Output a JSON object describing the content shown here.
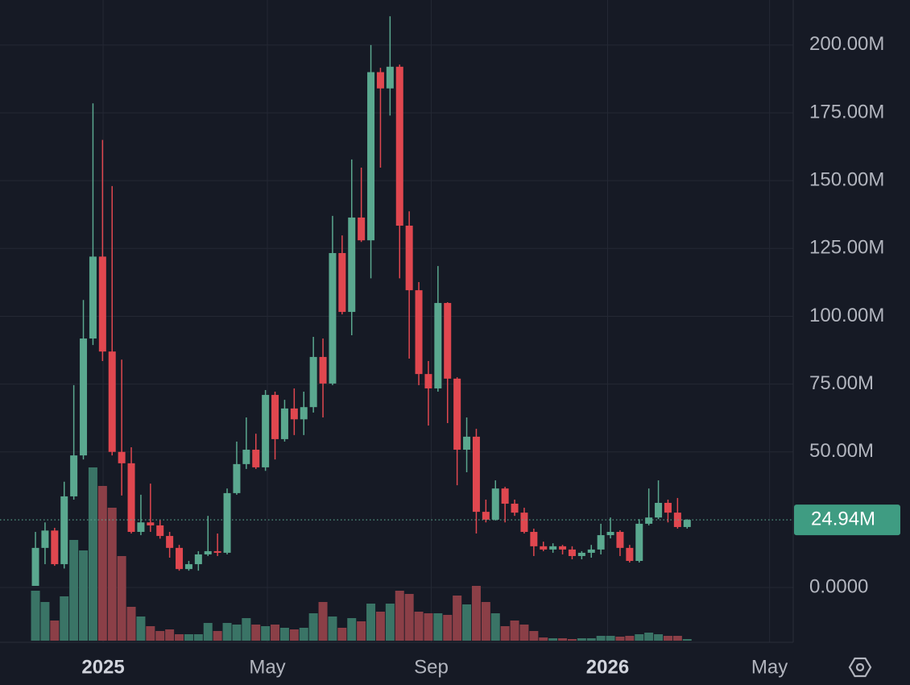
{
  "chart_data": {
    "type": "candlestick",
    "open": [
      0.6,
      14.6,
      21,
      8.6,
      33.6,
      48.7,
      91.8,
      122,
      87,
      50,
      45.8,
      20.5,
      24,
      22.9,
      19,
      14.6,
      6.8,
      8.6,
      12.2,
      13.4,
      12.8,
      34.8,
      45.5,
      50.8,
      44.3,
      71,
      54.7,
      66,
      62,
      66.5,
      85,
      75.2,
      123.3,
      101.6,
      136.4,
      128,
      190,
      184,
      192,
      133.4,
      109.6,
      78.7,
      73.4,
      104.9,
      77,
      50.8,
      55.6,
      27.9,
      25,
      36.5,
      30.9,
      27.6,
      20.5,
      15.2,
      14,
      15.2,
      14,
      11.6,
      12.8,
      14,
      19.3,
      20.5,
      14.6,
      9.8,
      23.5,
      25.8,
      31.2,
      27.6,
      22.3
    ],
    "high": [
      20.5,
      24,
      22,
      39,
      74.6,
      106,
      178.5,
      165,
      148,
      84,
      51.7,
      34.2,
      38.3,
      25,
      20.5,
      15.7,
      9.8,
      13.4,
      26.4,
      19.9,
      36.5,
      53.8,
      62.7,
      56.7,
      72.8,
      72.2,
      69.2,
      73.4,
      72.2,
      92.4,
      91.8,
      137,
      129.8,
      157.8,
      154.8,
      200,
      191.6,
      210.6,
      192.8,
      138.7,
      112.6,
      83.5,
      118.5,
      105.2,
      77.5,
      62.7,
      58.5,
      32.4,
      39.5,
      37.1,
      32.4,
      29.4,
      21.7,
      16.9,
      16.3,
      15.7,
      15.2,
      13.4,
      15.7,
      23.5,
      25.8,
      21.1,
      15.7,
      25.2,
      36.5,
      39.5,
      32.4,
      33,
      25.2
    ],
    "low": [
      0.6,
      8.6,
      8,
      7,
      32.4,
      47.2,
      89.4,
      83.5,
      48.7,
      33.9,
      19.9,
      19.3,
      20.5,
      18,
      11,
      6.2,
      6.2,
      6.2,
      11.6,
      11.6,
      12.2,
      34.2,
      43.7,
      43.7,
      43,
      47.2,
      53.8,
      56.2,
      56.2,
      64.5,
      62.7,
      74.6,
      100.7,
      93,
      127.4,
      114,
      154.8,
      174,
      114,
      84.4,
      74.6,
      59.7,
      72.2,
      60.6,
      37.7,
      42.5,
      19.9,
      24,
      24.7,
      24,
      26.4,
      19.9,
      11.6,
      13.4,
      12.8,
      12.2,
      10.4,
      10.4,
      11,
      12.2,
      18.1,
      11.6,
      9.2,
      9.2,
      22.9,
      25.2,
      24,
      21.7,
      21.7
    ],
    "close": [
      14.6,
      21,
      8.6,
      33.6,
      48.7,
      91.8,
      122,
      87,
      50,
      45.8,
      20.5,
      24,
      22.9,
      19,
      14.6,
      6.8,
      8.6,
      12.2,
      13.4,
      12.8,
      34.8,
      45.5,
      50.8,
      44.3,
      71,
      54.7,
      66,
      62,
      66.5,
      85,
      75.2,
      123.3,
      101.6,
      136.4,
      128,
      190,
      184,
      192,
      133.4,
      109.6,
      78.7,
      73.4,
      104.9,
      77,
      50.8,
      55.6,
      27.9,
      25,
      36.5,
      30.9,
      27.6,
      20.5,
      15.2,
      14,
      15.2,
      14,
      11.6,
      12.8,
      14,
      19.3,
      20.5,
      14.6,
      9.8,
      23.5,
      25.8,
      31.2,
      27.6,
      22.3,
      24.94
    ],
    "volume": [
      62,
      48,
      25,
      55,
      125,
      112,
      215,
      192,
      165,
      105,
      42,
      30,
      18,
      12,
      14,
      8,
      8,
      8,
      22,
      12,
      22,
      20,
      28,
      20,
      18,
      20,
      16,
      14,
      16,
      34,
      48,
      30,
      16,
      28,
      24,
      46,
      36,
      46,
      62,
      58,
      36,
      34,
      34,
      32,
      56,
      45,
      68,
      48,
      34,
      18,
      25,
      20,
      12,
      4,
      3,
      3,
      2,
      3,
      3,
      6,
      6,
      5,
      6,
      8,
      10,
      8,
      6,
      6,
      2
    ],
    "volume_lim": [
      0,
      215
    ],
    "up_color": "#5aa88f",
    "down_color": "#e0474f",
    "volume_up_color": "#3a7466",
    "volume_down_color": "#8b3f47",
    "ylim": [
      -20.2,
      216.6
    ],
    "yticks": [
      {
        "value": 0,
        "label": "0.0000"
      },
      {
        "value": 50,
        "label": "50.00M"
      },
      {
        "value": 75,
        "label": "75.00M"
      },
      {
        "value": 100,
        "label": "100.00M"
      },
      {
        "value": 125,
        "label": "125.00M"
      },
      {
        "value": 150,
        "label": "150.00M"
      },
      {
        "value": 175,
        "label": "175.00M"
      },
      {
        "value": 200,
        "label": "200.00M"
      }
    ],
    "xlim": [
      -3.7,
      79.07
    ],
    "xticks": [
      {
        "value": 7.06,
        "label": "2025"
      },
      {
        "value": 24.2,
        "label": "May"
      },
      {
        "value": 41.3,
        "label": "Sep"
      },
      {
        "value": 59.7,
        "label": "2026"
      },
      {
        "value": 76.6,
        "label": "May"
      }
    ],
    "last_price_label": "24.94M",
    "grid": true
  }
}
